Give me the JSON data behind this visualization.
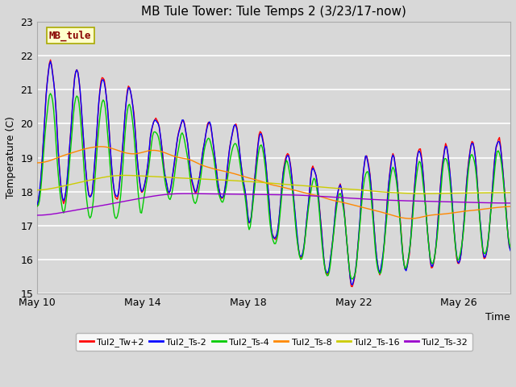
{
  "title": "MB Tule Tower: Tule Temps 2 (3/23/17-now)",
  "ylabel": "Temperature (C)",
  "xlabel": "Time",
  "ylim": [
    15.0,
    23.0
  ],
  "yticks": [
    15.0,
    16.0,
    17.0,
    18.0,
    19.0,
    20.0,
    21.0,
    22.0,
    23.0
  ],
  "xtick_labels": [
    "May 10",
    "May 14",
    "May 18",
    "May 22",
    "May 26"
  ],
  "xtick_positions": [
    0,
    96,
    192,
    288,
    384
  ],
  "n_points": 432,
  "bg_color": "#d8d8d8",
  "grid_color": "#ffffff",
  "series_colors": [
    "#ff0000",
    "#0000ff",
    "#00cc00",
    "#ff8800",
    "#cccc00",
    "#9900cc"
  ],
  "series_labels": [
    "Tul2_Tw+2",
    "Tul2_Ts-2",
    "Tul2_Ts-4",
    "Tul2_Ts-8",
    "Tul2_Ts-16",
    "Tul2_Ts-32"
  ],
  "line_width": 1.0,
  "figwidth": 6.4,
  "figheight": 4.8,
  "dpi": 100
}
